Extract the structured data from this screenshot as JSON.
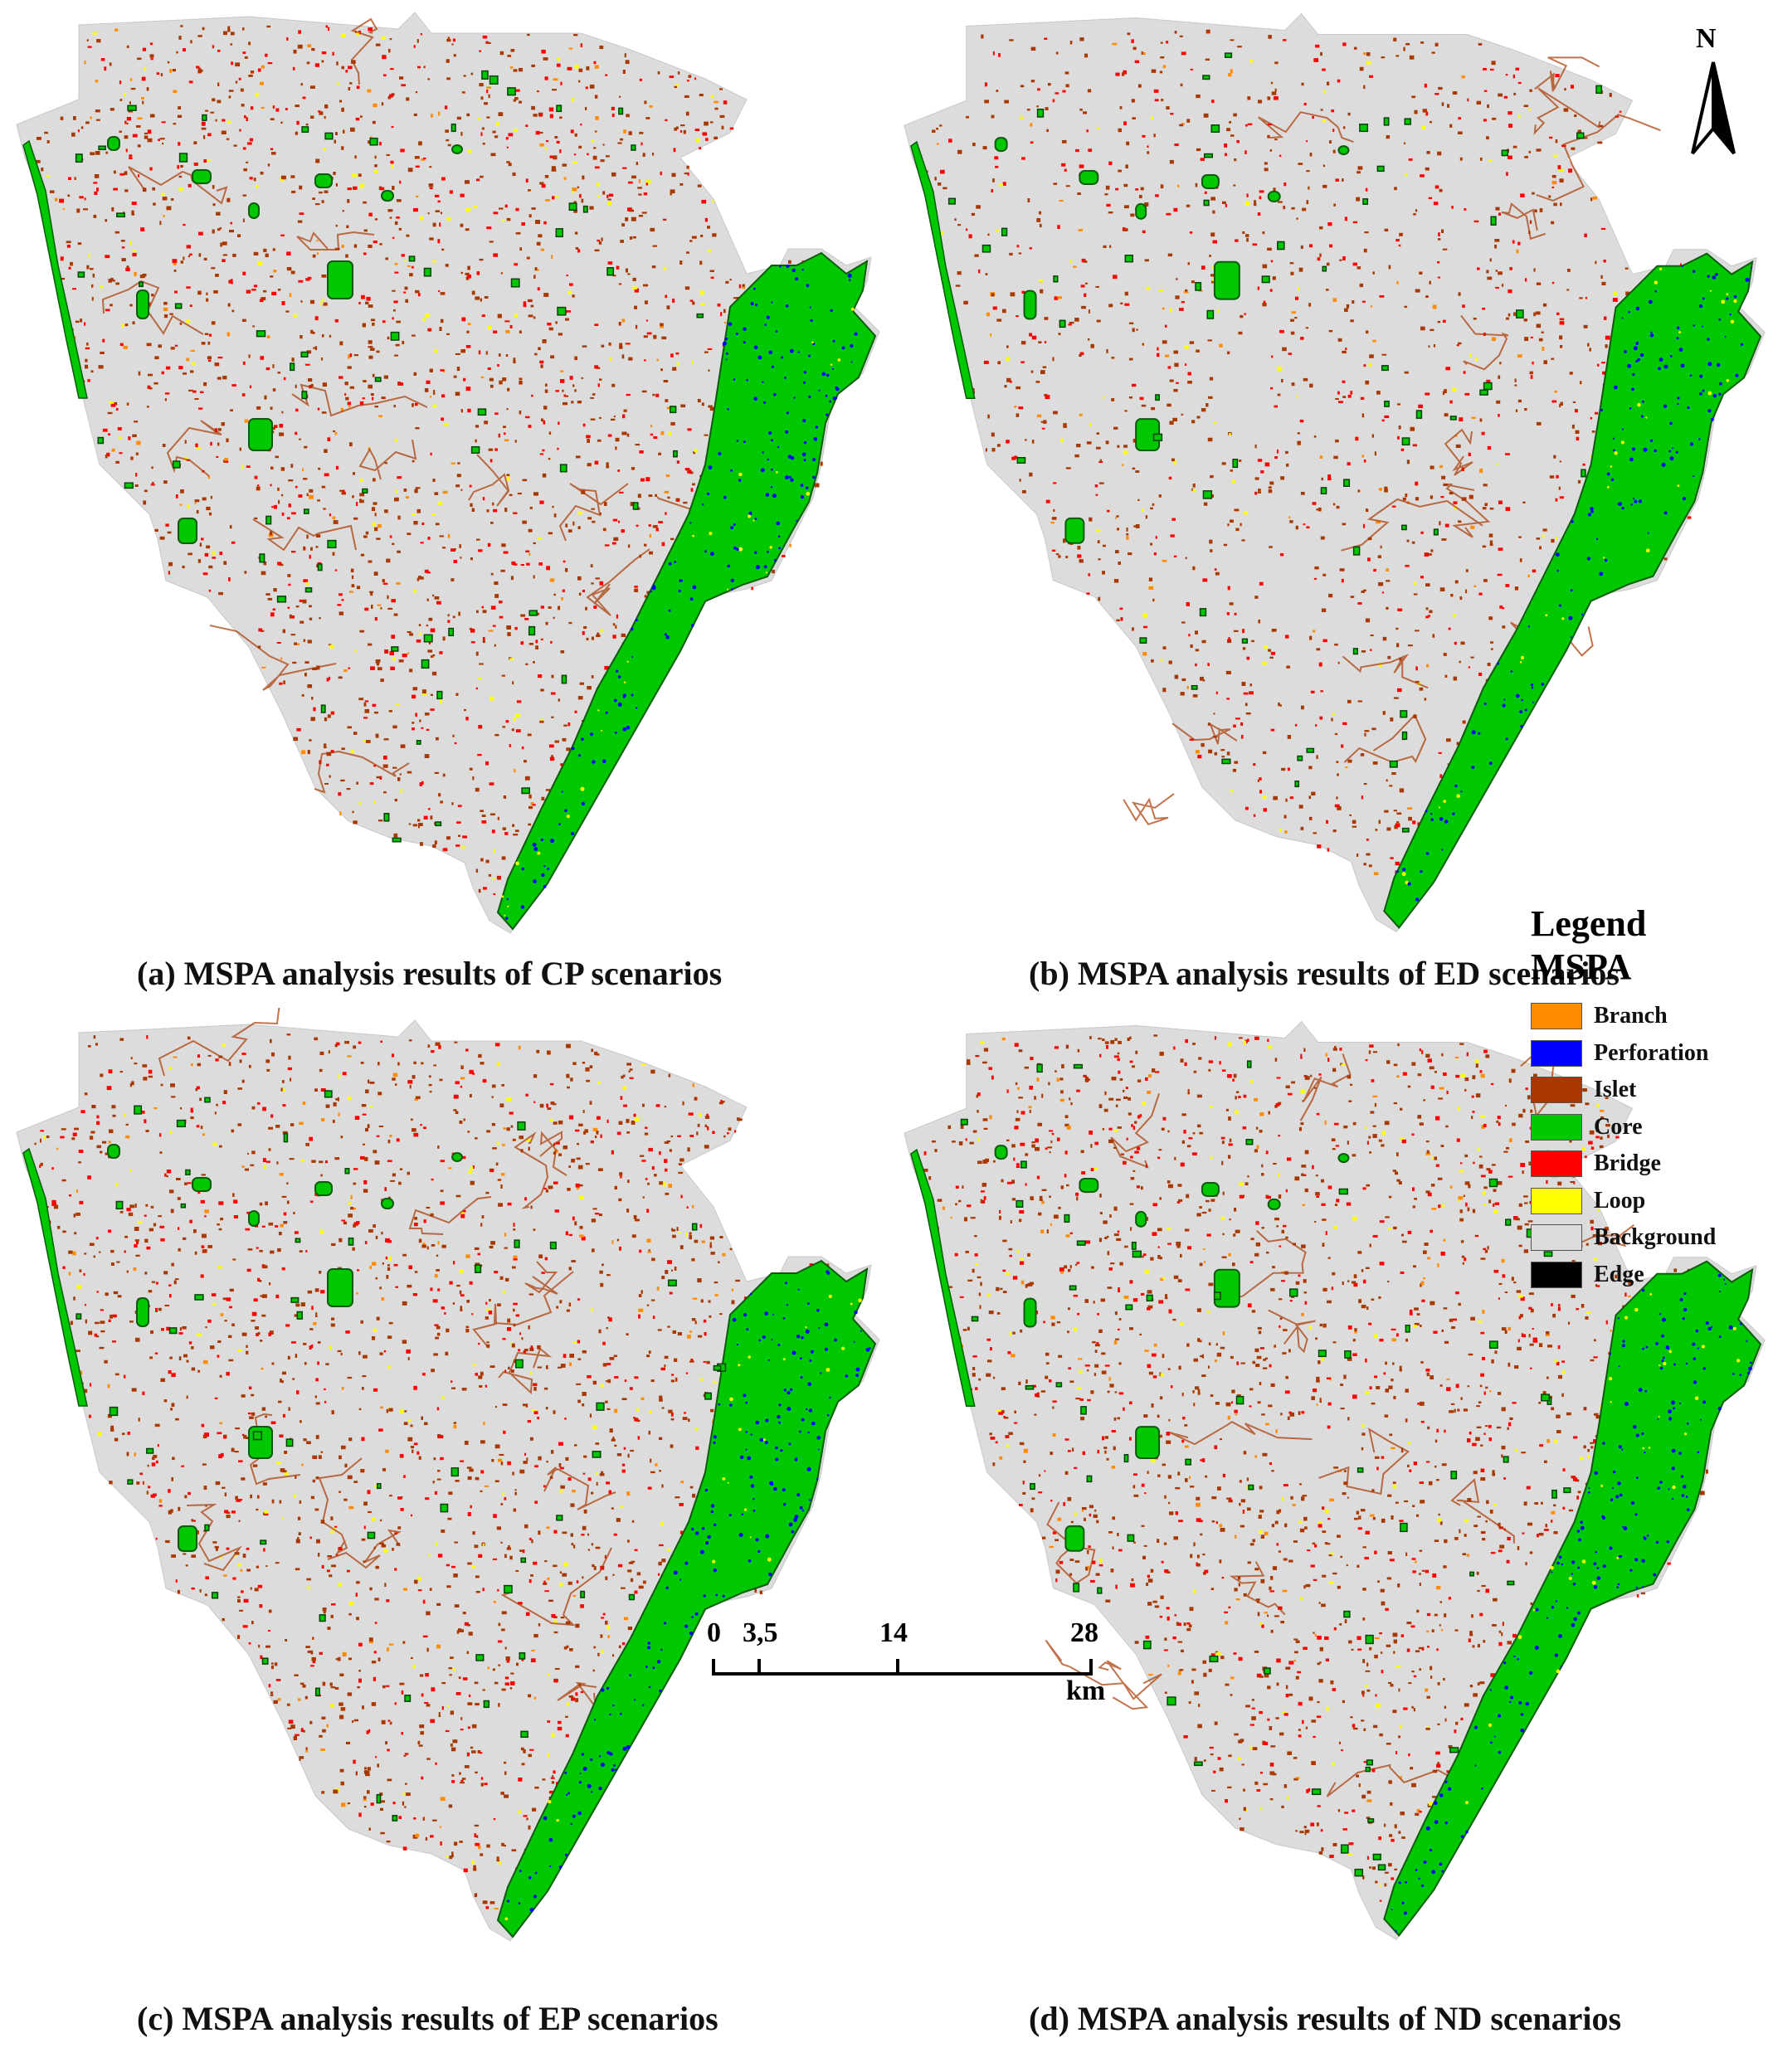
{
  "panels": [
    {
      "id": "a",
      "label": "(a)",
      "caption": "MSPA analysis results of CP scenarios"
    },
    {
      "id": "b",
      "label": "(b)",
      "caption": "MSPA analysis results of ED scenarios"
    },
    {
      "id": "c",
      "label": "(c)",
      "caption": "MSPA analysis results of EP scenarios"
    },
    {
      "id": "d",
      "label": "(d)",
      "caption": "MSPA analysis results of  ND scenarios"
    }
  ],
  "north_arrow": {
    "label": "N"
  },
  "legend": {
    "title": "Legend",
    "group": "MSPA",
    "items": [
      {
        "label": "Branch",
        "color": "#ff8c00"
      },
      {
        "label": "Perforation",
        "color": "#0000ff"
      },
      {
        "label": "Islet",
        "color": "#a83800"
      },
      {
        "label": "Core",
        "color": "#00c800"
      },
      {
        "label": "Bridge",
        "color": "#ff0000"
      },
      {
        "label": "Loop",
        "color": "#ffff00"
      },
      {
        "label": "Background",
        "color": "#dcdcdc"
      },
      {
        "label": "Edge",
        "color": "#000000"
      }
    ]
  },
  "scale_bar": {
    "ticks": [
      "0",
      "3,5",
      "14",
      "28"
    ],
    "unit": "km"
  },
  "colors": {
    "background_land": "#dcdcdc",
    "core": "#00c800",
    "islet": "#a83800",
    "bridge": "#ff0000",
    "loop": "#ffff00",
    "branch": "#ff8c00",
    "perforation": "#0000ff"
  }
}
